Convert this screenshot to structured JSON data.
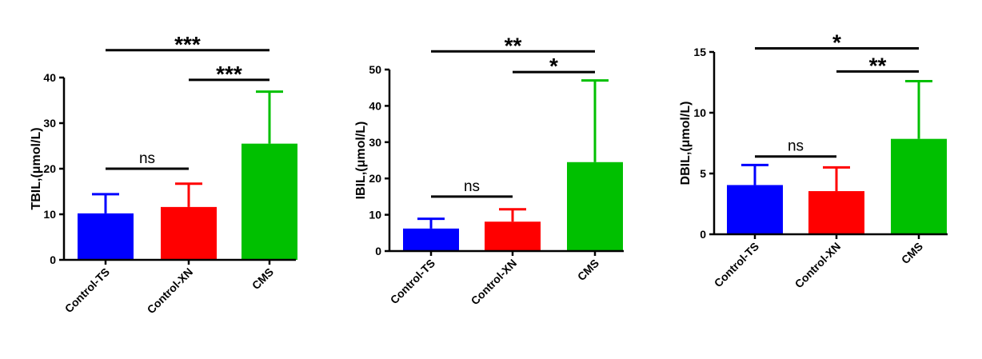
{
  "colors": {
    "Control-TS": "#0000ff",
    "Control-XN": "#ff0000",
    "CMS": "#00c000",
    "axis": "#000000"
  },
  "chart_data": [
    {
      "type": "bar",
      "ylabel": "TBIL,(μmol/L)",
      "ylim": [
        0,
        40
      ],
      "yticks": [
        0,
        10,
        20,
        30,
        40
      ],
      "categories": [
        "Control-TS",
        "Control-XN",
        "CMS"
      ],
      "values": [
        10.2,
        11.6,
        25.5
      ],
      "errors": [
        4.2,
        5.1,
        11.4
      ],
      "significance": [
        {
          "from": 0,
          "to": 1,
          "label": "ns",
          "level": 20
        },
        {
          "from": 1,
          "to": 2,
          "label": "***",
          "level": 39.5
        },
        {
          "from": 0,
          "to": 2,
          "label": "***",
          "level": 46
        }
      ]
    },
    {
      "type": "bar",
      "ylabel": "IBIL,(μmol/L)",
      "ylim": [
        0,
        50
      ],
      "yticks": [
        0,
        10,
        20,
        30,
        40,
        50
      ],
      "categories": [
        "Control-TS",
        "Control-XN",
        "CMS"
      ],
      "values": [
        6.2,
        8.1,
        24.5
      ],
      "errors": [
        2.7,
        3.4,
        22.5
      ],
      "significance": [
        {
          "from": 0,
          "to": 1,
          "label": "ns",
          "level": 15
        },
        {
          "from": 1,
          "to": 2,
          "label": "*",
          "level": 49.3
        },
        {
          "from": 0,
          "to": 2,
          "label": "**",
          "level": 55
        }
      ]
    },
    {
      "type": "bar",
      "ylabel": "DBIL,(μmol/L)",
      "ylim": [
        0,
        15
      ],
      "yticks": [
        0,
        5,
        10,
        15
      ],
      "categories": [
        "Control-TS",
        "Control-XN",
        "CMS"
      ],
      "values": [
        4.05,
        3.55,
        7.85
      ],
      "errors": [
        1.65,
        1.95,
        4.75
      ],
      "significance": [
        {
          "from": 0,
          "to": 1,
          "label": "ns",
          "level": 6.4
        },
        {
          "from": 1,
          "to": 2,
          "label": "**",
          "level": 13.4
        },
        {
          "from": 0,
          "to": 2,
          "label": "*",
          "level": 15.3
        }
      ]
    }
  ]
}
